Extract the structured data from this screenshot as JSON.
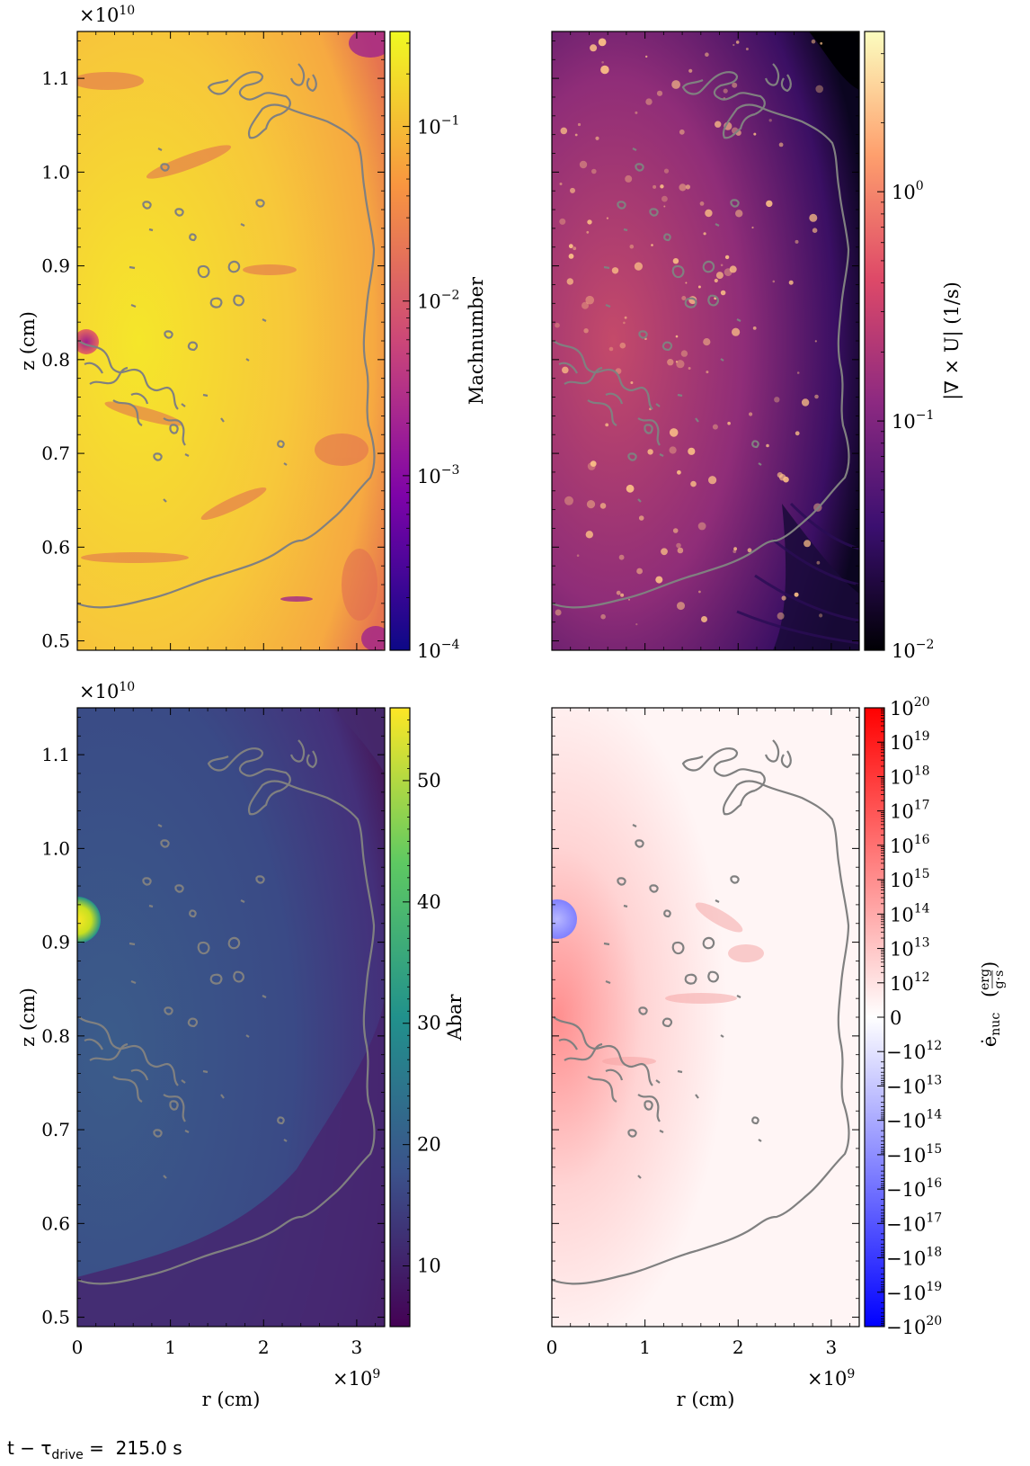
{
  "chart_data": [
    {
      "type": "heatmap",
      "panel": "top-left",
      "colorbar_label": "Machnumber",
      "colorbar_scale": "log",
      "colorbar_ticks": [
        "10",
        "10",
        "10",
        "10"
      ],
      "colorbar_tick_exponents": [
        "−1",
        "−2",
        "−3",
        "−4"
      ],
      "colorbar_range": [
        0.0001,
        0.35
      ],
      "colormap": [
        "#0d0887",
        "#7e03a8",
        "#cc4778",
        "#f89540",
        "#f0f921"
      ],
      "ylabel": "z  (cm)",
      "y_offset_label": "×10",
      "y_offset_exponent": "10",
      "yticks": [
        "0.5",
        "0.6",
        "0.7",
        "0.8",
        "0.9",
        "1.0",
        "1.1"
      ],
      "xlim": [
        0,
        3300000000.0
      ],
      "ylim": [
        4900000000.0,
        11500000000.0
      ]
    },
    {
      "type": "heatmap",
      "panel": "top-right",
      "colorbar_label": "|∇ × U|  (1/s)",
      "colorbar_scale": "log",
      "colorbar_ticks": [
        "10",
        "10",
        "10"
      ],
      "colorbar_tick_exponents": [
        "0",
        "−1",
        "−2"
      ],
      "colorbar_range": [
        0.01,
        5
      ],
      "colormap": [
        "#000004",
        "#3b0f70",
        "#8c2981",
        "#de4968",
        "#fe9f6d",
        "#fcfdbf"
      ],
      "xlim": [
        0,
        3300000000.0
      ],
      "ylim": [
        4900000000.0,
        11500000000.0
      ]
    },
    {
      "type": "heatmap",
      "panel": "bottom-left",
      "colorbar_label": "Abar",
      "colorbar_scale": "linear",
      "colorbar_ticks": [
        "50",
        "40",
        "30",
        "20",
        "10"
      ],
      "colorbar_range": [
        5,
        56
      ],
      "colormap": [
        "#440154",
        "#3b528b",
        "#21918c",
        "#5ec962",
        "#fde725"
      ],
      "ylabel": "z  (cm)",
      "xlabel": "r  (cm)",
      "x_offset_label": "×10",
      "x_offset_exponent": "9",
      "y_offset_label": "×10",
      "y_offset_exponent": "10",
      "xticks": [
        "0",
        "1",
        "2",
        "3"
      ],
      "yticks": [
        "0.5",
        "0.6",
        "0.7",
        "0.8",
        "0.9",
        "1.0",
        "1.1"
      ],
      "xlim": [
        0,
        3300000000.0
      ],
      "ylim": [
        4900000000.0,
        11500000000.0
      ]
    },
    {
      "type": "heatmap",
      "panel": "bottom-right",
      "colorbar_label": "ė",
      "colorbar_label_sub": "nuc",
      "colorbar_unit_num": "erg",
      "colorbar_unit_den": "g·s",
      "colorbar_scale": "symlog",
      "colorbar_ticks_pos": [
        "20",
        "19",
        "18",
        "17",
        "16",
        "15",
        "14",
        "13",
        "12"
      ],
      "colorbar_zero": "0",
      "colorbar_ticks_neg": [
        "12",
        "13",
        "14",
        "15",
        "16",
        "17",
        "18",
        "19",
        "20"
      ],
      "colorbar_tick_base": "10",
      "colorbar_neg_prefix": "−10",
      "colormap": [
        "#0000ff",
        "#ffffff",
        "#ff0000"
      ],
      "xlabel": "r  (cm)",
      "x_offset_label": "×10",
      "x_offset_exponent": "9",
      "xticks": [
        "0",
        "1",
        "2",
        "3"
      ],
      "xlim": [
        0,
        3300000000.0
      ],
      "ylim": [
        4900000000.0,
        11500000000.0
      ]
    }
  ],
  "time_label": "t − τ",
  "time_label_sub": "drive",
  "time_label_value": " =  215.0 s"
}
